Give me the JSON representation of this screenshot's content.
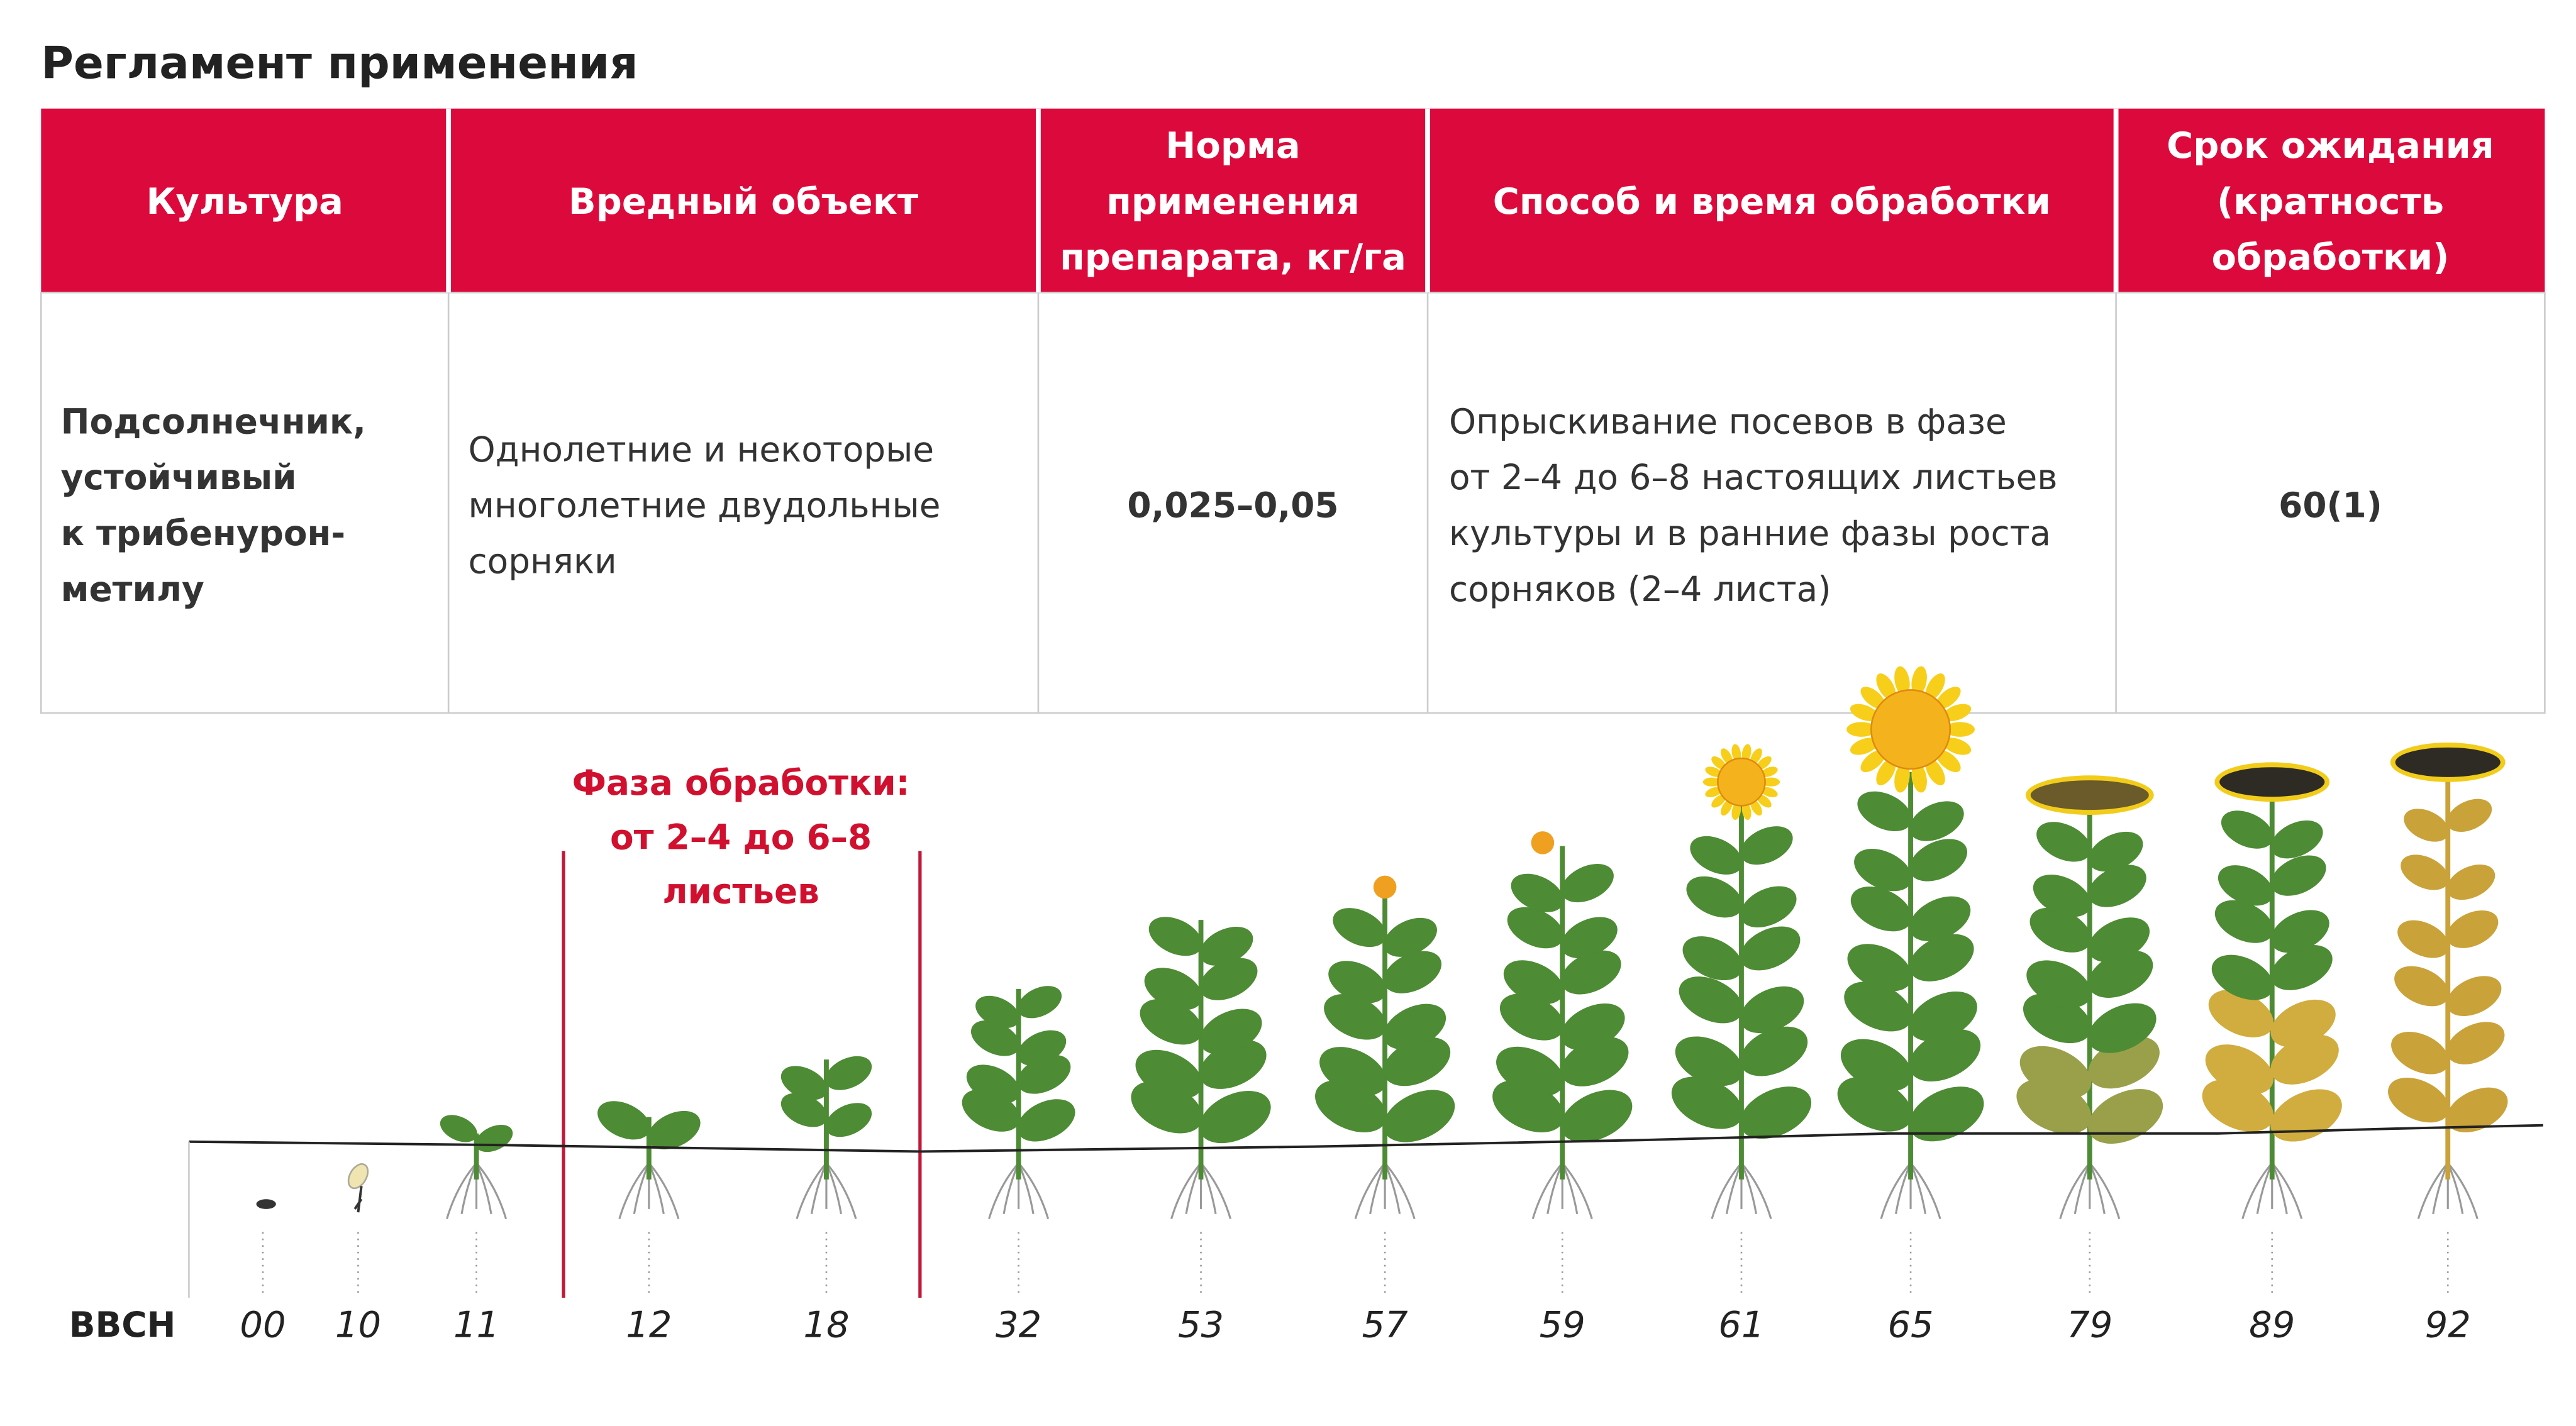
{
  "header": {
    "title": "Регламент применения"
  },
  "table": {
    "columns": [
      [
        "Культура"
      ],
      [
        "Вредный объект"
      ],
      [
        "Норма",
        "применения",
        "препарата, кг/га"
      ],
      [
        "Способ и время обработки"
      ],
      [
        "Срок ожидания",
        "(кратность",
        "обработки)"
      ]
    ],
    "rows": [
      [
        [
          "Подсолнечник,",
          "устойчивый",
          "к трибенурон-",
          "метилу"
        ],
        [
          "Однолетние и некоторые",
          "многолетние двудольные",
          "сорняки"
        ],
        [
          "0,025–0,05"
        ],
        [
          "Опрыскивание посевов в фазе",
          "от 2–4 до 6–8 настоящих листьев",
          "культуры и в ранние фазы роста",
          "сорняков (2–4 листа)"
        ],
        [
          "60(1)"
        ]
      ]
    ]
  },
  "phase": {
    "label": [
      "Фаза обработки:",
      "от 2–4 до 6–8",
      "листьев"
    ]
  },
  "stages": {
    "label": "BBCH",
    "codes": [
      "00",
      "10",
      "11",
      "12",
      "18",
      "32",
      "53",
      "57",
      "59",
      "61",
      "65",
      "79",
      "89",
      "92"
    ]
  }
}
